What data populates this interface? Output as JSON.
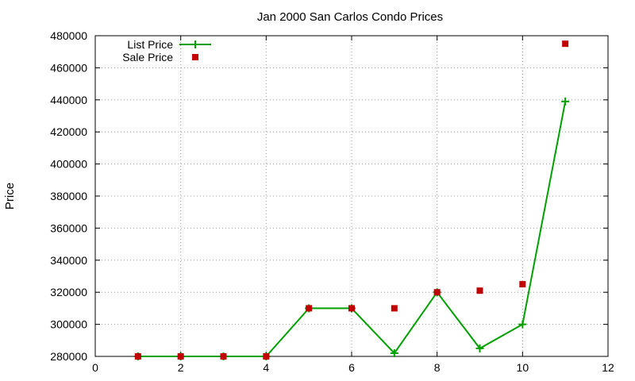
{
  "chart_data": {
    "type": "line",
    "title": "Jan 2000 San Carlos Condo Prices",
    "xlabel": "",
    "ylabel": "Price",
    "xlim": [
      0,
      12
    ],
    "ylim": [
      280000,
      480000
    ],
    "xticks": [
      0,
      2,
      4,
      6,
      8,
      10,
      12
    ],
    "yticks": [
      280000,
      300000,
      320000,
      340000,
      360000,
      380000,
      400000,
      420000,
      440000,
      460000,
      480000
    ],
    "grid": true,
    "legend_position": "top-left",
    "series": [
      {
        "name": "List Price",
        "style": "linespoints",
        "marker": "plus",
        "color": "#00a000",
        "x": [
          1,
          2,
          3,
          4,
          5,
          6,
          7,
          8,
          9,
          10,
          11
        ],
        "y": [
          280000,
          280000,
          280000,
          280000,
          310000,
          310000,
          282000,
          320000,
          285000,
          300000,
          439000
        ]
      },
      {
        "name": "Sale Price",
        "style": "points",
        "marker": "square",
        "color": "#c00000",
        "x": [
          1,
          2,
          3,
          4,
          5,
          6,
          7,
          8,
          9,
          10,
          11
        ],
        "y": [
          280000,
          280000,
          280000,
          280000,
          310000,
          310000,
          310000,
          320000,
          321000,
          325000,
          475000
        ]
      }
    ]
  }
}
